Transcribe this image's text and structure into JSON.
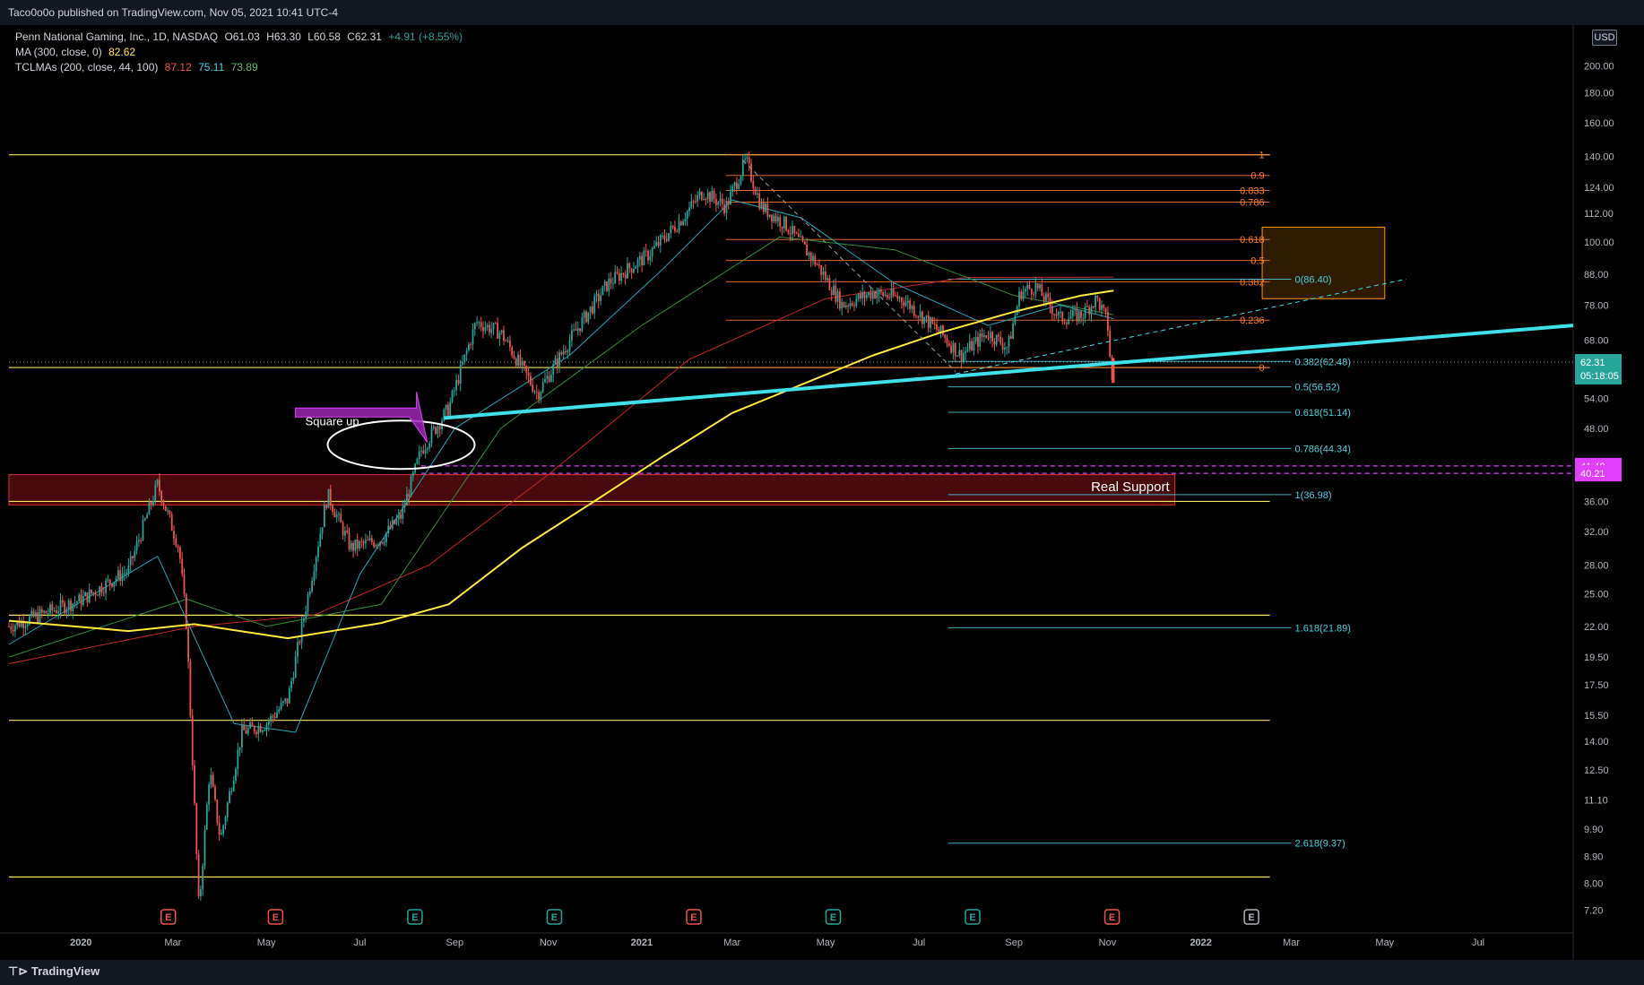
{
  "header": {
    "published": "Taco0o0o published on TradingView.com, Nov 05, 2021 10:41 UTC-4",
    "footer_brand": "TradingView",
    "currency": "USD"
  },
  "legend": {
    "symbol": "Penn National Gaming, Inc., 1D, NASDAQ",
    "open": "O61.03",
    "high": "H63.30",
    "low": "L60.58",
    "close": "C62.31",
    "change": "+4.91 (+8.55%)",
    "ma_label": "MA (300, close, 0)",
    "ma_value": "82.62",
    "tclmas_label": "TCLMAs (200, close, 44, 100)",
    "tclmas_v1": "87.12",
    "tclmas_v2": "75.11",
    "tclmas_v3": "73.89"
  },
  "colors": {
    "up": "#26a69a",
    "down": "#ef5350",
    "ma300": "#ffeb3b",
    "fib_orange": "#ff7a2f",
    "fib_cyan": "#4dd0e1",
    "trend": "#3fe0e8",
    "support": "#f5e663",
    "zone_red": "#a0151a",
    "magenta": "#e040fb",
    "axis_text": "#b2b5be",
    "background": "#000000"
  },
  "chart_data": {
    "type": "candlestick",
    "symbol": "PENN",
    "interval": "1D",
    "y_scale": "log",
    "y_ticks": [
      "200.00",
      "180.00",
      "160.00",
      "140.00",
      "124.00",
      "112.00",
      "100.00",
      "88.00",
      "78.00",
      "68.00",
      "54.00",
      "48.00",
      "36.00",
      "32.00",
      "28.00",
      "25.00",
      "22.00",
      "19.50",
      "17.50",
      "15.50",
      "14.00",
      "12.50",
      "11.10",
      "9.90",
      "8.90",
      "8.00",
      "7.20"
    ],
    "x_ticks": [
      "2020",
      "Mar",
      "May",
      "Jul",
      "Sep",
      "Nov",
      "2021",
      "Mar",
      "May",
      "Jul",
      "Sep",
      "Nov",
      "2022",
      "Mar",
      "May",
      "Jul"
    ],
    "price_path": [
      {
        "date": "2019-11-15",
        "close": 22.0
      },
      {
        "date": "2020-01-02",
        "close": 24.5
      },
      {
        "date": "2020-02-01",
        "close": 27.5
      },
      {
        "date": "2020-02-20",
        "close": 38.5
      },
      {
        "date": "2020-03-05",
        "close": 30.0
      },
      {
        "date": "2020-03-10",
        "close": 22.0
      },
      {
        "date": "2020-03-18",
        "close": 7.2
      },
      {
        "date": "2020-03-25",
        "close": 12.5
      },
      {
        "date": "2020-04-01",
        "close": 9.5
      },
      {
        "date": "2020-04-15",
        "close": 14.5
      },
      {
        "date": "2020-05-01",
        "close": 15.0
      },
      {
        "date": "2020-05-15",
        "close": 16.5
      },
      {
        "date": "2020-06-01",
        "close": 28.0
      },
      {
        "date": "2020-06-10",
        "close": 37.0
      },
      {
        "date": "2020-06-25",
        "close": 30.0
      },
      {
        "date": "2020-07-15",
        "close": 31.0
      },
      {
        "date": "2020-07-28",
        "close": 34.0
      },
      {
        "date": "2020-08-10",
        "close": 44.0
      },
      {
        "date": "2020-08-28",
        "close": 52.0
      },
      {
        "date": "2020-09-15",
        "close": 73.0
      },
      {
        "date": "2020-10-01",
        "close": 70.0
      },
      {
        "date": "2020-10-25",
        "close": 55.0
      },
      {
        "date": "2020-11-15",
        "close": 68.0
      },
      {
        "date": "2020-12-10",
        "close": 85.0
      },
      {
        "date": "2021-01-05",
        "close": 95.0
      },
      {
        "date": "2021-01-25",
        "close": 108.0
      },
      {
        "date": "2021-02-10",
        "close": 122.0
      },
      {
        "date": "2021-02-25",
        "close": 115.0
      },
      {
        "date": "2021-03-10",
        "close": 138.0
      },
      {
        "date": "2021-03-20",
        "close": 115.0
      },
      {
        "date": "2021-04-05",
        "close": 107.0
      },
      {
        "date": "2021-04-25",
        "close": 92.0
      },
      {
        "date": "2021-05-12",
        "close": 78.0
      },
      {
        "date": "2021-06-01",
        "close": 82.0
      },
      {
        "date": "2021-06-20",
        "close": 80.0
      },
      {
        "date": "2021-07-15",
        "close": 70.0
      },
      {
        "date": "2021-07-28",
        "close": 64.0
      },
      {
        "date": "2021-08-15",
        "close": 70.0
      },
      {
        "date": "2021-08-28",
        "close": 66.0
      },
      {
        "date": "2021-09-05",
        "close": 82.0
      },
      {
        "date": "2021-09-15",
        "close": 84.0
      },
      {
        "date": "2021-10-01",
        "close": 74.0
      },
      {
        "date": "2021-10-15",
        "close": 75.0
      },
      {
        "date": "2021-10-25",
        "close": 80.0
      },
      {
        "date": "2021-11-01",
        "close": 73.0
      },
      {
        "date": "2021-11-04",
        "close": 57.4
      },
      {
        "date": "2021-11-05",
        "close": 62.31
      }
    ],
    "fib_retracement": {
      "color": "orange",
      "levels": [
        {
          "label": "1",
          "price": 141.0
        },
        {
          "label": "0.9",
          "price": 130.0
        },
        {
          "label": "0.833",
          "price": 122.5
        },
        {
          "label": "0.786",
          "price": 117.0
        },
        {
          "label": "0.618",
          "price": 101.0
        },
        {
          "label": "0.5",
          "price": 93.0
        },
        {
          "label": "0.382",
          "price": 85.5
        },
        {
          "label": "0.236",
          "price": 73.5
        },
        {
          "label": "0",
          "price": 61.0
        }
      ]
    },
    "fib_extension": {
      "color": "cyan",
      "levels": [
        {
          "label": "0(86.40)",
          "price": 86.4
        },
        {
          "label": "0.382(62.48)",
          "price": 62.48
        },
        {
          "label": "0.5(56.52)",
          "price": 56.52
        },
        {
          "label": "0.618(51.14)",
          "price": 51.14
        },
        {
          "label": "0.786(44.34)",
          "price": 44.34
        },
        {
          "label": "1(36.98)",
          "price": 36.98
        },
        {
          "label": "1.618(21.89)",
          "price": 21.89
        },
        {
          "label": "2.618(9.37)",
          "price": 9.37
        }
      ]
    },
    "horizontal_levels": [
      141.0,
      61.0,
      36.0,
      23.0,
      15.2,
      8.2
    ],
    "support_zone": {
      "low": 35.5,
      "high": 40.0,
      "label": "Real Support"
    },
    "magenta_levels": [
      {
        "price": 41.4,
        "label": "41.40"
      },
      {
        "price": 40.21,
        "label": "40.21"
      }
    ],
    "current_price": {
      "price": 62.31,
      "label": "62.31",
      "countdown": "05:18:05"
    },
    "annotations": [
      {
        "text": "Square up"
      }
    ],
    "earnings_markers": [
      {
        "date": "2020-02-27",
        "result": "E",
        "color": "red"
      },
      {
        "date": "2020-05-07",
        "result": "E",
        "color": "red"
      },
      {
        "date": "2020-08-06",
        "result": "E",
        "color": "teal"
      },
      {
        "date": "2020-11-05",
        "result": "E",
        "color": "teal"
      },
      {
        "date": "2021-02-04",
        "result": "E",
        "color": "red"
      },
      {
        "date": "2021-05-06",
        "result": "E",
        "color": "teal"
      },
      {
        "date": "2021-08-05",
        "result": "E",
        "color": "teal"
      },
      {
        "date": "2021-11-04",
        "result": "E",
        "color": "red"
      },
      {
        "date": "2022-02-03",
        "result": "E",
        "color": "gray"
      }
    ],
    "ma300": [
      {
        "date": "2019-11-15",
        "value": 22.5
      },
      {
        "date": "2020-02-01",
        "value": 21.6
      },
      {
        "date": "2020-03-15",
        "value": 22.2
      },
      {
        "date": "2020-05-15",
        "value": 21.0
      },
      {
        "date": "2020-07-15",
        "value": 22.3
      },
      {
        "date": "2020-08-28",
        "value": 24.0
      },
      {
        "date": "2020-10-15",
        "value": 30.0
      },
      {
        "date": "2020-12-01",
        "value": 36.0
      },
      {
        "date": "2021-01-15",
        "value": 43.0
      },
      {
        "date": "2021-03-01",
        "value": 51.0
      },
      {
        "date": "2021-04-15",
        "value": 57.0
      },
      {
        "date": "2021-06-01",
        "value": 64.0
      },
      {
        "date": "2021-07-15",
        "value": 70.0
      },
      {
        "date": "2021-09-01",
        "value": 76.0
      },
      {
        "date": "2021-10-15",
        "value": 81.0
      },
      {
        "date": "2021-11-05",
        "value": 82.6
      }
    ],
    "tclma_slow": [
      {
        "date": "2019-11-15",
        "value": 19.0
      },
      {
        "date": "2020-03-15",
        "value": 22.0
      },
      {
        "date": "2020-06-01",
        "value": 23.0
      },
      {
        "date": "2020-08-15",
        "value": 28.0
      },
      {
        "date": "2020-11-01",
        "value": 40.0
      },
      {
        "date": "2021-02-01",
        "value": 63.0
      },
      {
        "date": "2021-05-01",
        "value": 80.0
      },
      {
        "date": "2021-08-01",
        "value": 87.0
      },
      {
        "date": "2021-11-05",
        "value": 87.1
      }
    ],
    "tclma_mid": [
      {
        "date": "2019-11-15",
        "value": 19.5
      },
      {
        "date": "2020-03-10",
        "value": 24.5
      },
      {
        "date": "2020-05-01",
        "value": 22.0
      },
      {
        "date": "2020-07-15",
        "value": 24.0
      },
      {
        "date": "2020-10-01",
        "value": 48.0
      },
      {
        "date": "2021-01-01",
        "value": 72.0
      },
      {
        "date": "2021-04-01",
        "value": 102.0
      },
      {
        "date": "2021-06-15",
        "value": 97.0
      },
      {
        "date": "2021-09-01",
        "value": 81.0
      },
      {
        "date": "2021-11-05",
        "value": 75.1
      }
    ],
    "tclma_fast": [
      {
        "date": "2019-11-15",
        "value": 20.5
      },
      {
        "date": "2020-02-20",
        "value": 29.0
      },
      {
        "date": "2020-04-10",
        "value": 15.0
      },
      {
        "date": "2020-05-20",
        "value": 14.5
      },
      {
        "date": "2020-07-01",
        "value": 27.0
      },
      {
        "date": "2020-09-01",
        "value": 48.0
      },
      {
        "date": "2020-11-15",
        "value": 64.0
      },
      {
        "date": "2021-01-15",
        "value": 90.0
      },
      {
        "date": "2021-03-01",
        "value": 118.0
      },
      {
        "date": "2021-04-15",
        "value": 110.0
      },
      {
        "date": "2021-06-15",
        "value": 85.0
      },
      {
        "date": "2021-08-15",
        "value": 72.0
      },
      {
        "date": "2021-10-01",
        "value": 78.0
      },
      {
        "date": "2021-11-05",
        "value": 73.9
      }
    ],
    "trendlines": [
      {
        "type": "solid",
        "color": "cyan",
        "from": {
          "date": "2020-08-25",
          "price": 50.0
        },
        "to": {
          "date": "2022-09-01",
          "price": 72.0
        }
      },
      {
        "type": "dashed",
        "color": "cyan",
        "from": {
          "date": "2021-07-25",
          "price": 59.5
        },
        "to": {
          "date": "2022-05-15",
          "price": 86.4
        }
      },
      {
        "type": "dashed",
        "color": "gray",
        "from": {
          "date": "2021-03-08",
          "price": 138.0
        },
        "to": {
          "date": "2021-07-25",
          "price": 60.0
        }
      }
    ]
  }
}
